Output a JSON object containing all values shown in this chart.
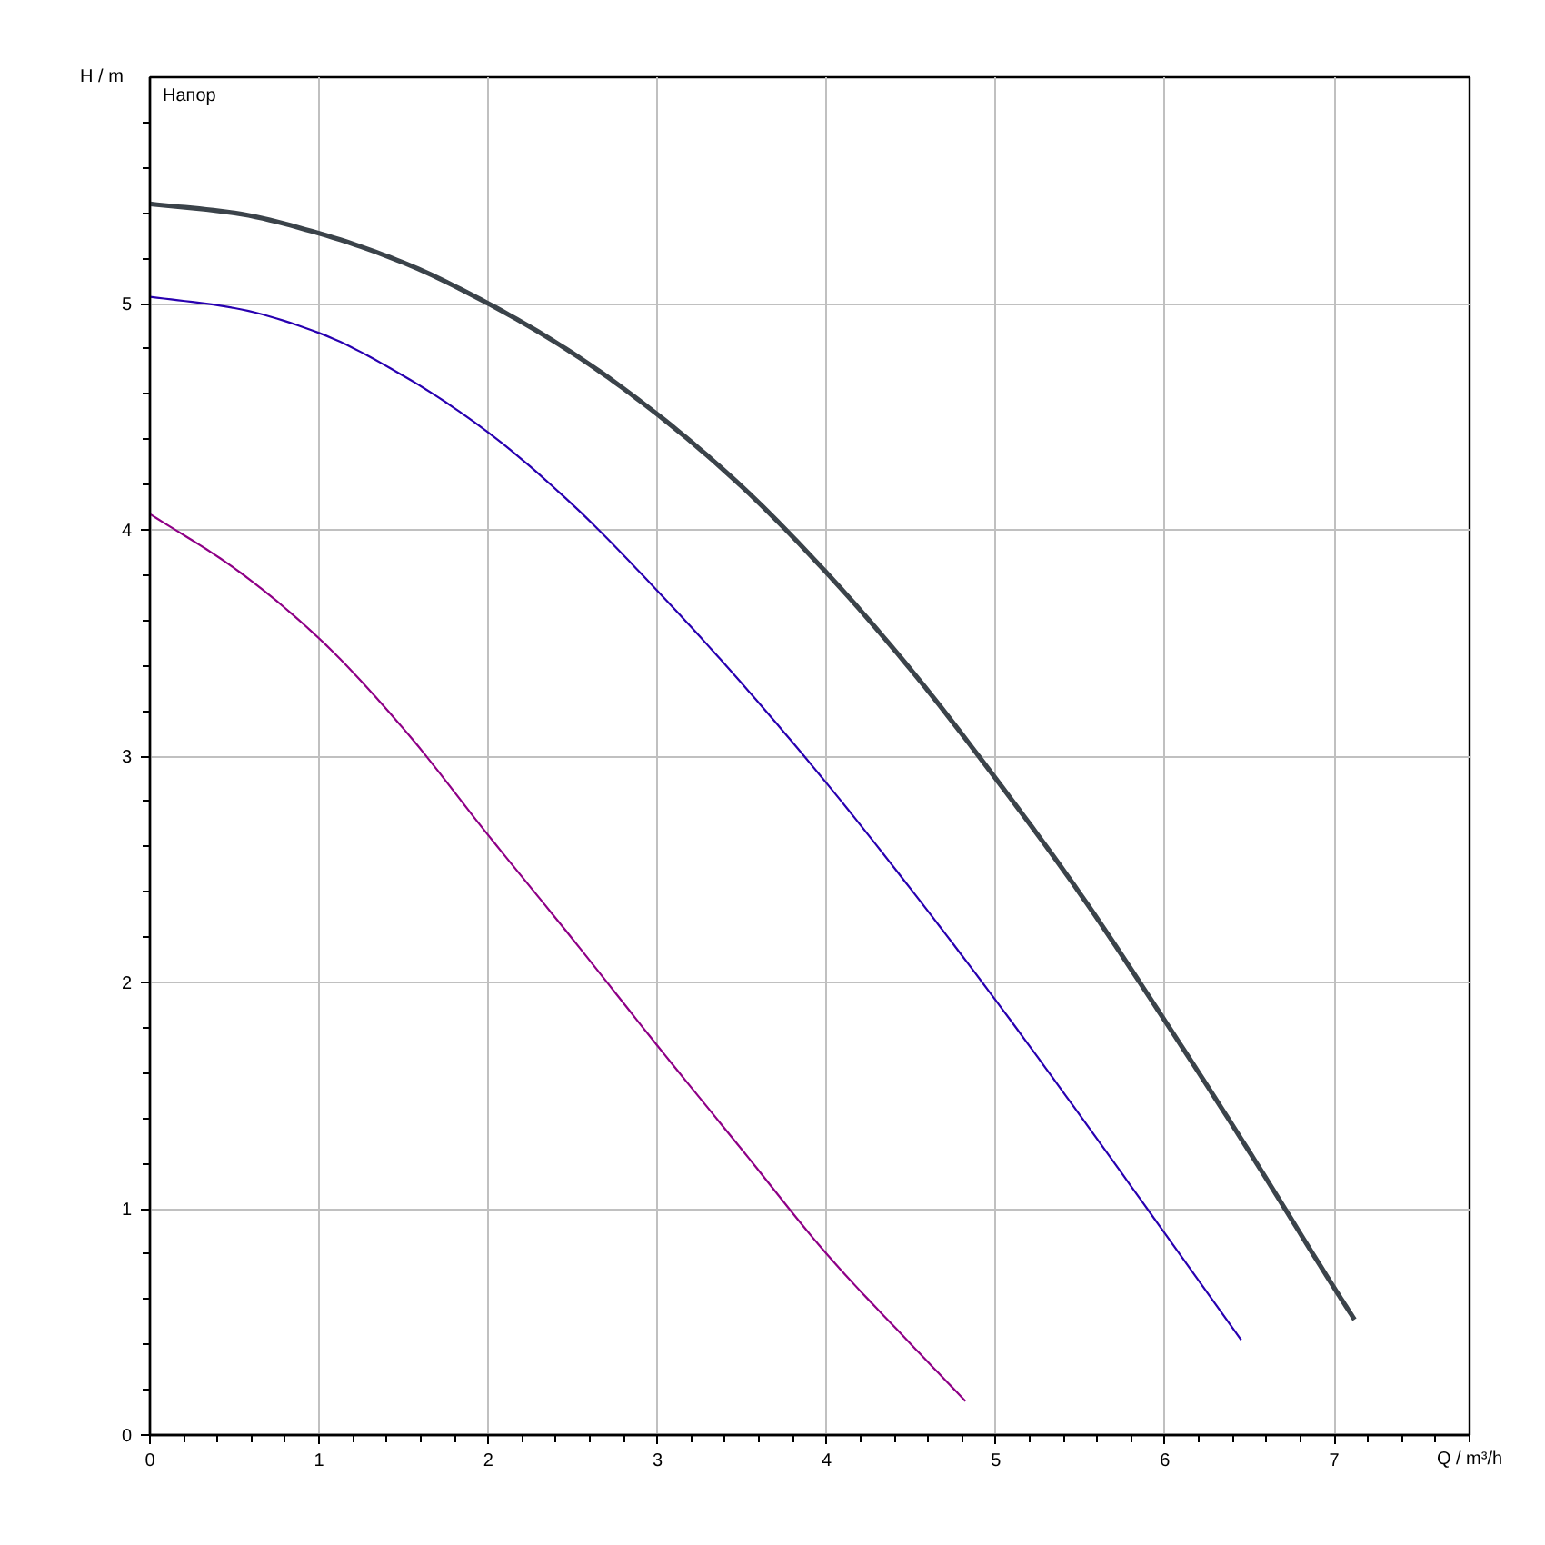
{
  "chart_data": {
    "type": "line",
    "title": "Напор",
    "xlabel": "Q / m³/h",
    "ylabel": "H / m",
    "xlim": [
      0,
      7.8
    ],
    "ylim": [
      0,
      6
    ],
    "xticks": [
      0,
      {
        "value": 0.2,
        "label": null
      },
      {
        "value": 0.4,
        "label": null
      },
      {
        "value": 0.6,
        "label": null
      },
      {
        "value": 0.8,
        "label": null
      },
      1,
      {
        "value": 1.2,
        "label": null
      },
      {
        "value": 1.4,
        "label": null
      },
      {
        "value": 1.6,
        "label": null
      },
      {
        "value": 1.8,
        "label": null
      },
      2,
      {
        "value": 2.2,
        "label": null
      },
      {
        "value": 2.4,
        "label": null
      },
      {
        "value": 2.6,
        "label": null
      },
      {
        "value": 2.8,
        "label": null
      },
      3,
      {
        "value": 3.2,
        "label": null
      },
      {
        "value": 3.4,
        "label": null
      },
      {
        "value": 3.6,
        "label": null
      },
      {
        "value": 3.8,
        "label": null
      },
      4,
      {
        "value": 4.2,
        "label": null
      },
      {
        "value": 4.4,
        "label": null
      },
      {
        "value": 4.6,
        "label": null
      },
      {
        "value": 4.8,
        "label": null
      },
      5,
      {
        "value": 5.2,
        "label": null
      },
      {
        "value": 5.4,
        "label": null
      },
      {
        "value": 5.6,
        "label": null
      },
      {
        "value": 5.8,
        "label": null
      },
      6,
      {
        "value": 6.2,
        "label": null
      },
      {
        "value": 6.4,
        "label": null
      },
      {
        "value": 6.6,
        "label": null
      },
      {
        "value": 6.8,
        "label": null
      },
      7,
      {
        "value": 7.2,
        "label": null
      },
      {
        "value": 7.4,
        "label": null
      },
      {
        "value": 7.6,
        "label": null
      },
      {
        "value": 7.8,
        "label": null
      }
    ],
    "yticks": [
      0,
      {
        "value": 0.2,
        "label": null
      },
      {
        "value": 0.4,
        "label": null
      },
      {
        "value": 0.6,
        "label": null
      },
      {
        "value": 0.8,
        "label": null
      },
      1,
      {
        "value": 1.2,
        "label": null
      },
      {
        "value": 1.4,
        "label": null
      },
      {
        "value": 1.6,
        "label": null
      },
      {
        "value": 1.8,
        "label": null
      },
      2,
      {
        "value": 2.2,
        "label": null
      },
      {
        "value": 2.4,
        "label": null
      },
      {
        "value": 2.6,
        "label": null
      },
      {
        "value": 2.8,
        "label": null
      },
      3,
      {
        "value": 3.2,
        "label": null
      },
      {
        "value": 3.4,
        "label": null
      },
      {
        "value": 3.6,
        "label": null
      },
      {
        "value": 3.8,
        "label": null
      },
      4,
      {
        "value": 4.2,
        "label": null
      },
      {
        "value": 4.4,
        "label": null
      },
      {
        "value": 4.6,
        "label": null
      },
      {
        "value": 4.8,
        "label": null
      },
      5,
      {
        "value": 5.2,
        "label": null
      },
      {
        "value": 5.4,
        "label": null
      },
      {
        "value": 5.6,
        "label": null
      },
      {
        "value": 5.8,
        "label": null
      }
    ],
    "grid": true,
    "series": [
      {
        "color": "#3b434a",
        "x": [
          0,
          0.5,
          1,
          1.5,
          2,
          2.5,
          3,
          3.5,
          4,
          4.5,
          5,
          5.5,
          6,
          6.5,
          7,
          7.12
        ],
        "values": [
          5.44,
          5.4,
          5.31,
          5.18,
          5.0,
          4.78,
          4.51,
          4.19,
          3.81,
          3.38,
          2.9,
          2.39,
          1.83,
          1.25,
          0.65,
          0.51
        ]
      },
      {
        "color": "#2800b0",
        "x": [
          0,
          0.5,
          1,
          1.5,
          2,
          2.5,
          3,
          3.5,
          4,
          4.5,
          5,
          5.5,
          6,
          6.45
        ],
        "values": [
          5.03,
          4.98,
          4.87,
          4.68,
          4.43,
          4.11,
          3.73,
          3.32,
          2.88,
          2.41,
          1.92,
          1.41,
          0.89,
          0.42
        ]
      },
      {
        "color": "#8e0086",
        "x": [
          0,
          0.5,
          1,
          1.5,
          2,
          2.5,
          3,
          3.5,
          4,
          4.5,
          4.82
        ],
        "values": [
          4.07,
          3.83,
          3.52,
          3.12,
          2.65,
          2.19,
          1.72,
          1.26,
          0.8,
          0.4,
          0.15
        ]
      }
    ]
  }
}
